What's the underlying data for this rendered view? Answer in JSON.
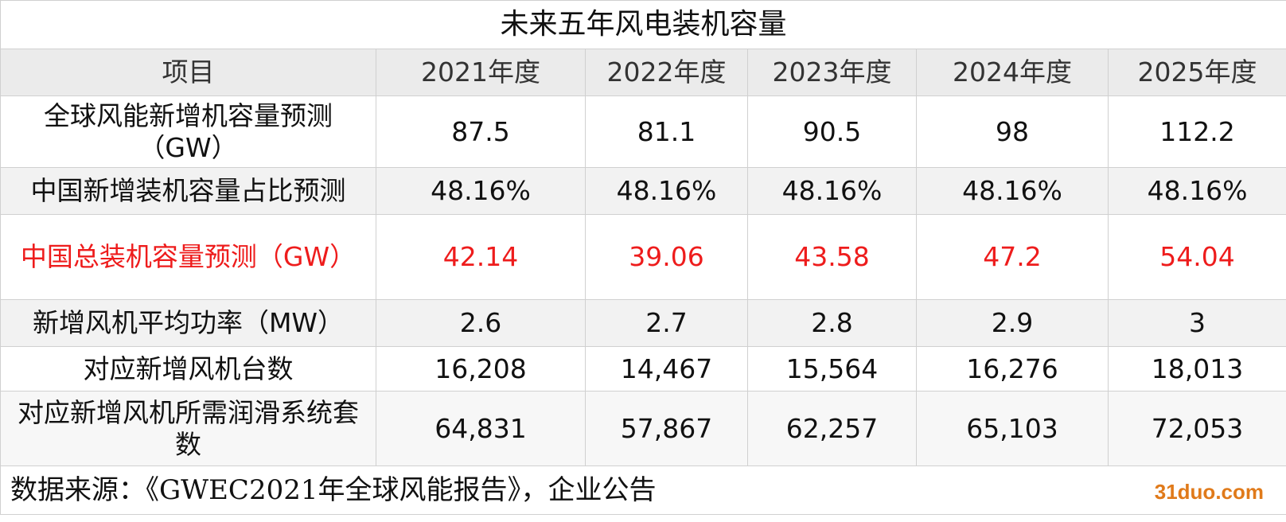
{
  "title": "未来五年风电装机容量",
  "table": {
    "header": [
      "项目",
      "2021年度",
      "2022年度",
      "2023年度",
      "2024年度",
      "2025年度"
    ],
    "rows": [
      [
        "全球风能新增机容量预测（GW）",
        "87.5",
        "81.1",
        "90.5",
        "98",
        "112.2"
      ],
      [
        "中国新增装机容量占比预测",
        "48.16%",
        "48.16%",
        "48.16%",
        "48.16%",
        "48.16%"
      ],
      [
        "中国总装机容量预测（GW）",
        "42.14",
        "39.06",
        "43.58",
        "47.2",
        "54.04"
      ],
      [
        "新增风机平均功率（MW）",
        "2.6",
        "2.7",
        "2.8",
        "2.9",
        "3"
      ],
      [
        "对应新增风机台数",
        "16,208",
        "14,467",
        "15,564",
        "16,276",
        "18,013"
      ],
      [
        "对应新增风机所需润滑系统套数",
        "64,831",
        "57,867",
        "62,257",
        "65,103",
        "72,053"
      ]
    ]
  },
  "source": "数据来源：《GWEC2021年全球风能报告》，企业公告",
  "watermark": "31duo.com"
}
